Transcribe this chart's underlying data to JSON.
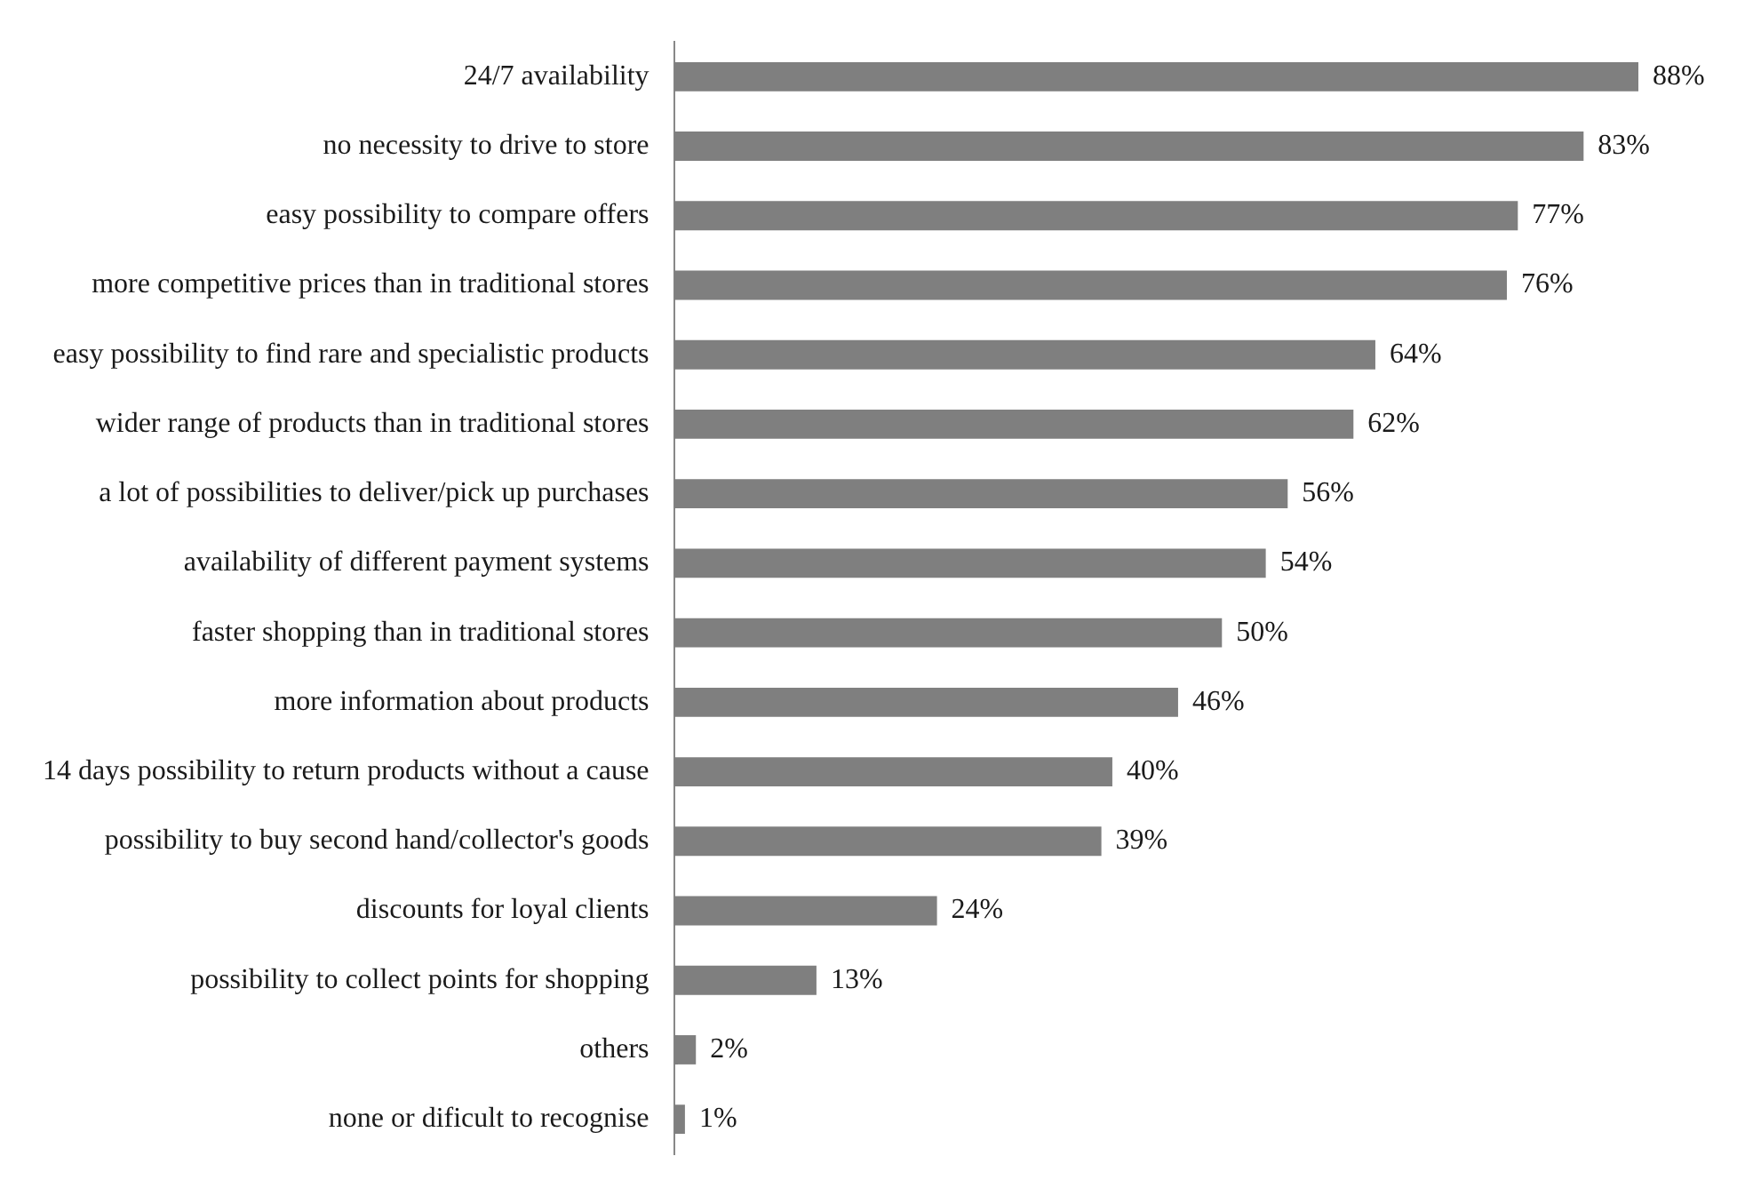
{
  "chart_data": {
    "type": "bar",
    "orientation": "horizontal",
    "categories": [
      "24/7 availability",
      "no necessity to drive to store",
      "easy possibility to compare offers",
      "more competitive prices than in traditional stores",
      "easy possibility to find rare and specialistic products",
      "wider range of products than in traditional stores",
      "a lot of possibilities to deliver/pick up purchases",
      "availability of different payment systems",
      "faster shopping than in traditional stores",
      "more information about products",
      "14 days possibility to return products without a cause",
      "possibility to buy second hand/collector's goods",
      "discounts for loyal clients",
      "possibility to collect points for shopping",
      "others",
      "none or dificult to recognise"
    ],
    "values": [
      88,
      83,
      77,
      76,
      64,
      62,
      56,
      54,
      50,
      46,
      40,
      39,
      24,
      13,
      2,
      1
    ],
    "value_labels": [
      "88%",
      "83%",
      "77%",
      "76%",
      "64%",
      "62%",
      "56%",
      "54%",
      "50%",
      "46%",
      "40%",
      "39%",
      "24%",
      "13%",
      "2%",
      "1%"
    ],
    "color": "#7f7f7f",
    "legend": false
  }
}
